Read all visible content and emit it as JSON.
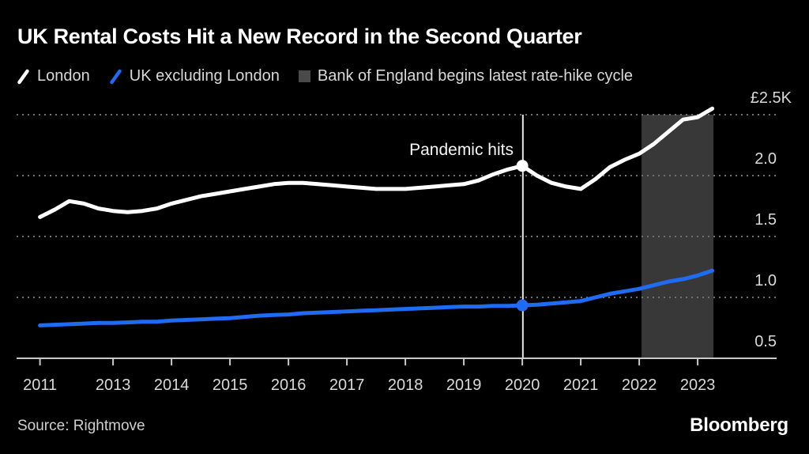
{
  "header": {
    "title": "UK Rental Costs Hit a New Record in the Second Quarter"
  },
  "legend": {
    "items": [
      {
        "label": "London",
        "marker": "slash",
        "color": "#ffffff"
      },
      {
        "label": "UK excluding London",
        "marker": "slash",
        "color": "#1f6bf2"
      },
      {
        "label": "Bank of England begins latest rate-hike cycle",
        "marker": "square",
        "color": "#4a4a4a"
      }
    ]
  },
  "footer": {
    "source": "Source: Rightmove",
    "brand": "Bloomberg"
  },
  "colors": {
    "background": "#000000",
    "london_line": "#ffffff",
    "uk_ex_london_line": "#1f6bf2",
    "rate_hike_band": "#383838",
    "legend_square": "#4a4a4a",
    "gridline": "#707070",
    "axis": "#c9c9c9",
    "tick_label": "#d9d9d9",
    "pandemic_line": "#e6e6e6"
  },
  "chart_data": {
    "type": "line",
    "title": "UK Rental Costs Hit a New Record in the Second Quarter",
    "xlim": [
      2011.35,
      2024.35
    ],
    "ylim": [
      0.5,
      2.5
    ],
    "grid": "horizontal-dotted",
    "legend_position": "top",
    "x_ticks": [
      {
        "x": 2011.75,
        "label": "2011"
      },
      {
        "x": 2013,
        "label": "2013"
      },
      {
        "x": 2014,
        "label": "2014"
      },
      {
        "x": 2015,
        "label": "2015"
      },
      {
        "x": 2016,
        "label": "2016"
      },
      {
        "x": 2017,
        "label": "2017"
      },
      {
        "x": 2018,
        "label": "2018"
      },
      {
        "x": 2019,
        "label": "2019"
      },
      {
        "x": 2020,
        "label": "2020"
      },
      {
        "x": 2021,
        "label": "2021"
      },
      {
        "x": 2022,
        "label": "2022"
      },
      {
        "x": 2023,
        "label": "2023"
      }
    ],
    "y_ticks": [
      {
        "v": 2.5,
        "label": "£2.5K"
      },
      {
        "v": 2.0,
        "label": "2.0"
      },
      {
        "v": 1.5,
        "label": "1.5"
      },
      {
        "v": 1.0,
        "label": "1.0"
      },
      {
        "v": 0.5,
        "label": "0.5"
      }
    ],
    "band": {
      "label": "Bank of England begins latest rate-hike cycle",
      "x0": 2022.04,
      "x1": 2023.27,
      "color": "#383838"
    },
    "vline": {
      "label": "Pandemic hits",
      "x": 2020.01
    },
    "x": [
      2011.75,
      2012.0,
      2012.25,
      2012.5,
      2012.75,
      2013.0,
      2013.25,
      2013.5,
      2013.75,
      2014.0,
      2014.25,
      2014.5,
      2014.75,
      2015.0,
      2015.25,
      2015.5,
      2015.75,
      2016.0,
      2016.25,
      2016.5,
      2016.75,
      2017.0,
      2017.25,
      2017.5,
      2017.75,
      2018.0,
      2018.25,
      2018.5,
      2018.75,
      2019.0,
      2019.25,
      2019.5,
      2019.75,
      2020.0,
      2020.25,
      2020.5,
      2020.75,
      2021.0,
      2021.25,
      2021.5,
      2021.75,
      2022.0,
      2022.25,
      2022.5,
      2022.75,
      2023.0,
      2023.25
    ],
    "series": [
      {
        "name": "London",
        "color": "#ffffff",
        "values": [
          1.66,
          1.72,
          1.79,
          1.77,
          1.73,
          1.71,
          1.7,
          1.71,
          1.73,
          1.77,
          1.8,
          1.83,
          1.85,
          1.87,
          1.89,
          1.91,
          1.93,
          1.94,
          1.94,
          1.93,
          1.92,
          1.91,
          1.9,
          1.89,
          1.89,
          1.89,
          1.9,
          1.91,
          1.92,
          1.93,
          1.96,
          2.01,
          2.05,
          2.08,
          2.0,
          1.94,
          1.91,
          1.89,
          1.97,
          2.07,
          2.13,
          2.18,
          2.26,
          2.36,
          2.46,
          2.48,
          2.55
        ]
      },
      {
        "name": "UK excluding London",
        "color": "#1f6bf2",
        "values": [
          0.77,
          0.775,
          0.78,
          0.785,
          0.79,
          0.79,
          0.795,
          0.8,
          0.8,
          0.81,
          0.815,
          0.82,
          0.825,
          0.83,
          0.84,
          0.85,
          0.855,
          0.86,
          0.87,
          0.875,
          0.88,
          0.885,
          0.89,
          0.895,
          0.9,
          0.905,
          0.91,
          0.915,
          0.92,
          0.925,
          0.925,
          0.93,
          0.93,
          0.935,
          0.94,
          0.95,
          0.96,
          0.97,
          1.0,
          1.03,
          1.05,
          1.07,
          1.1,
          1.13,
          1.15,
          1.18,
          1.22
        ]
      }
    ],
    "markers": [
      {
        "series": 0,
        "x": 2020.0,
        "v": 2.08
      },
      {
        "series": 1,
        "x": 2020.0,
        "v": 0.935
      }
    ]
  }
}
